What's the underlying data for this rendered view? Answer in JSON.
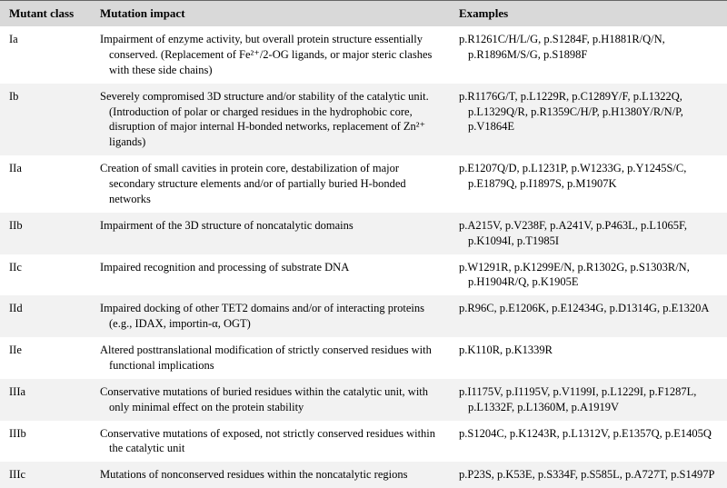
{
  "table": {
    "headers": [
      "Mutant class",
      "Mutation impact",
      "Examples"
    ],
    "rows": [
      {
        "class": "Ia",
        "impact": "Impairment of enzyme activity, but overall protein structure essentially conserved. (Replacement of Fe²⁺/2-OG ligands, or major steric clashes with these side chains)",
        "examples": "p.R1261C/H/L/G, p.S1284F, p.H1881R/Q/N, p.R1896M/S/G, p.S1898F"
      },
      {
        "class": "Ib",
        "impact": "Severely compromised 3D structure and/or stability of the catalytic unit. (Introduction of polar or charged residues in the hydrophobic core, disruption of major internal H-bonded networks, replacement of Zn²⁺ ligands)",
        "examples": "p.R1176G/T, p.L1229R, p.C1289Y/F, p.L1322Q, p.L1329Q/R, p.R1359C/H/P, p.H1380Y/R/N/P, p.V1864E"
      },
      {
        "class": "IIa",
        "impact": "Creation of small cavities in protein core, destabilization of major secondary structure elements and/or of partially buried H-bonded networks",
        "examples": "p.E1207Q/D, p.L1231P, p.W1233G, p.Y1245S/C, p.E1879Q, p.I1897S, p.M1907K"
      },
      {
        "class": "IIb",
        "impact": "Impairment of the 3D structure of noncatalytic domains",
        "examples": "p.A215V, p.V238F, p.A241V, p.P463L, p.L1065F, p.K1094I, p.T1985I"
      },
      {
        "class": "IIc",
        "impact": "Impaired recognition and processing of substrate DNA",
        "examples": "p.W1291R, p.K1299E/N, p.R1302G, p.S1303R/N, p.H1904R/Q, p.K1905E"
      },
      {
        "class": "IId",
        "impact": "Impaired docking of other TET2 domains and/or of interacting proteins (e.g., IDAX, importin-α, OGT)",
        "examples": "p.R96C, p.E1206K, p.E12434G, p.D1314G, p.E1320A"
      },
      {
        "class": "IIe",
        "impact": "Altered posttranslational modification of strictly conserved residues with functional implications",
        "examples": "p.K110R, p.K1339R"
      },
      {
        "class": "IIIa",
        "impact": "Conservative mutations of buried residues within the catalytic unit, with only minimal effect on the protein stability",
        "examples": "p.I1175V, p.I1195V, p.V1199I, p.L1229I, p.F1287L, p.L1332F, p.L1360M, p.A1919V"
      },
      {
        "class": "IIIb",
        "impact": "Conservative mutations of exposed, not strictly conserved residues within the catalytic unit",
        "examples": "p.S1204C, p.K1243R, p.L1312V, p.E1357Q, p.E1405Q"
      },
      {
        "class": "IIIc",
        "impact": "Mutations of nonconserved residues within the noncatalytic regions",
        "examples": "p.P23S, p.K53E, p.S334F, p.S585L, p.A727T, p.S1497P"
      }
    ]
  }
}
